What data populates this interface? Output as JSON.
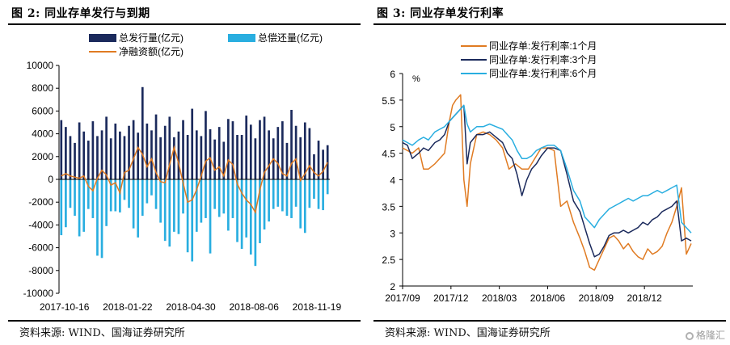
{
  "left": {
    "title": "图 2:  同业存单发行与到期",
    "source": "资料来源:  WIND、国海证券研究所",
    "chart_data": {
      "type": "bar",
      "ylim": [
        -10000,
        10000
      ],
      "yticks": [
        -10000,
        -8000,
        -6000,
        -4000,
        -2000,
        0,
        2000,
        4000,
        6000,
        8000,
        10000
      ],
      "xtick_labels": [
        "2017-10-16",
        "2018-01-22",
        "2018-04-30",
        "2018-08-06",
        "2018-11-19"
      ],
      "xtick_index": [
        0,
        14,
        28,
        42,
        56
      ],
      "legend": [
        "总发行量(亿元)",
        "总偿还量(亿元)",
        "净融资额(亿元)"
      ],
      "series": [
        {
          "name": "总发行量(亿元)",
          "color": "#1b2a5c",
          "values": [
            5200,
            4600,
            3800,
            3200,
            5000,
            4200,
            3400,
            5100,
            3800,
            4300,
            5500,
            3600,
            4900,
            4200,
            3800,
            4700,
            5200,
            4100,
            8100,
            4900,
            4300,
            5700,
            3700,
            4700,
            5500,
            3700,
            4200,
            5200,
            3900,
            6200,
            4300,
            3800,
            6000,
            4400,
            3500,
            4600,
            3300,
            5300,
            5100,
            3900,
            3900,
            5600,
            4800,
            3600,
            5200,
            5500,
            4300,
            3600,
            4600,
            5100,
            3200,
            6100,
            4700,
            3700,
            5000,
            4500,
            2200,
            3400,
            2600,
            3000
          ]
        },
        {
          "name": "总偿还量(亿元)",
          "color": "#29aee0",
          "values": [
            -4900,
            -4200,
            -2500,
            -3200,
            -5000,
            -4600,
            -2600,
            -3400,
            -6700,
            -6900,
            -4100,
            -2800,
            -2800,
            -2900,
            -1800,
            -2500,
            -4300,
            -5100,
            -3200,
            -2100,
            -1400,
            -2600,
            -3800,
            -5400,
            -5900,
            -4600,
            -4800,
            -3000,
            -6400,
            -7200,
            -4600,
            -3800,
            -3400,
            -6500,
            -2600,
            -3300,
            -3000,
            -4500,
            -3400,
            -5500,
            -6100,
            -5100,
            -6600,
            -7600,
            -5600,
            -4400,
            -3700,
            -2600,
            -2400,
            -2800,
            -3200,
            -3400,
            -2400,
            -4300,
            -4700,
            -2500,
            -1700,
            -2600,
            -2700,
            -1300
          ]
        },
        {
          "name": "净融资额(亿元)",
          "color": "#e07b22",
          "values": [
            300,
            500,
            300,
            200,
            100,
            300,
            -600,
            -1000,
            100,
            800,
            400,
            -500,
            -300,
            -1200,
            600,
            800,
            1800,
            2800,
            2200,
            1100,
            1800,
            600,
            -200,
            -300,
            1300,
            2800,
            1400,
            -300,
            -2000,
            -1800,
            -900,
            300,
            1600,
            1900,
            800,
            1100,
            300,
            1700,
            1300,
            -400,
            -1200,
            -1800,
            -2200,
            -2900,
            -900,
            600,
            1200,
            1800,
            1400,
            500,
            300,
            1400,
            1800,
            -100,
            500,
            1200,
            600,
            300,
            700,
            1500
          ]
        }
      ]
    }
  },
  "right": {
    "title": "图 3:  同业存单发行利率",
    "source": "资料来源:  WIND、国海证券研究所",
    "watermark": "格隆汇",
    "chart_data": {
      "type": "line",
      "ylabel": "%",
      "ylim": [
        2,
        6
      ],
      "yticks": [
        2,
        2.5,
        3,
        3.5,
        4,
        4.5,
        5,
        5.5,
        6
      ],
      "xlim": [
        0,
        18
      ],
      "xtick_labels": [
        "2017/09",
        "2017/12",
        "2018/03",
        "2018/06",
        "2018/09",
        "2018/12"
      ],
      "xtick_pos": [
        0,
        3,
        6,
        9,
        12,
        15
      ],
      "series": [
        {
          "name": "同业存单:发行利率:1个月",
          "color": "#e07b22",
          "x": [
            0,
            0.3,
            0.6,
            1.0,
            1.3,
            1.6,
            2.0,
            2.3,
            2.6,
            2.9,
            3.1,
            3.3,
            3.6,
            3.8,
            4.0,
            4.2,
            4.6,
            5.0,
            5.4,
            5.8,
            6.2,
            6.6,
            7.0,
            7.4,
            7.8,
            8.2,
            8.6,
            9.0,
            9.4,
            9.8,
            10.2,
            10.6,
            11.0,
            11.3,
            11.6,
            11.9,
            12.2,
            12.5,
            12.8,
            13.1,
            13.4,
            13.7,
            14.0,
            14.3,
            14.6,
            14.9,
            15.2,
            15.5,
            15.8,
            16.1,
            16.4,
            16.7,
            17.0,
            17.3,
            17.6,
            17.9
          ],
          "y": [
            4.6,
            4.55,
            4.5,
            4.6,
            4.2,
            4.2,
            4.3,
            4.4,
            4.5,
            5.1,
            5.4,
            5.5,
            5.6,
            4.0,
            3.5,
            4.3,
            4.85,
            4.9,
            4.85,
            4.75,
            4.6,
            4.2,
            4.3,
            4.2,
            4.2,
            4.4,
            4.6,
            4.6,
            4.55,
            3.5,
            3.6,
            3.2,
            2.9,
            2.65,
            2.35,
            2.3,
            2.5,
            2.7,
            2.9,
            2.95,
            2.85,
            2.7,
            2.8,
            2.65,
            2.55,
            2.5,
            2.7,
            2.6,
            2.65,
            2.75,
            3.0,
            3.2,
            3.5,
            3.85,
            2.6,
            2.8
          ]
        },
        {
          "name": "同业存单:发行利率:3个月",
          "color": "#1b2a5c",
          "x": [
            0,
            0.3,
            0.6,
            1.0,
            1.3,
            1.6,
            2.0,
            2.3,
            2.6,
            2.9,
            3.2,
            3.5,
            3.8,
            4.0,
            4.2,
            4.6,
            5.0,
            5.4,
            5.8,
            6.2,
            6.5,
            6.8,
            7.1,
            7.4,
            7.7,
            8.0,
            8.3,
            8.6,
            9.0,
            9.4,
            9.8,
            10.2,
            10.6,
            11.0,
            11.3,
            11.6,
            11.9,
            12.2,
            12.5,
            12.8,
            13.1,
            13.4,
            13.7,
            14.0,
            14.3,
            14.6,
            14.9,
            15.2,
            15.5,
            15.8,
            16.1,
            16.4,
            16.7,
            17.0,
            17.3,
            17.6,
            17.9
          ],
          "y": [
            4.7,
            4.65,
            4.4,
            4.5,
            4.6,
            4.55,
            4.7,
            4.75,
            4.85,
            5.1,
            5.2,
            5.3,
            5.4,
            4.3,
            4.7,
            4.85,
            4.85,
            4.9,
            4.8,
            4.7,
            4.5,
            4.4,
            4.1,
            3.7,
            4.0,
            4.2,
            4.3,
            4.45,
            4.6,
            4.6,
            4.55,
            4.1,
            3.6,
            3.4,
            3.1,
            2.8,
            2.55,
            2.6,
            2.75,
            2.95,
            3.0,
            3.0,
            3.05,
            3.0,
            3.05,
            3.1,
            3.2,
            3.15,
            3.25,
            3.3,
            3.4,
            3.45,
            3.5,
            3.6,
            2.85,
            2.9,
            2.85
          ]
        },
        {
          "name": "同业存单:发行利率:6个月",
          "color": "#29aee0",
          "x": [
            0,
            0.3,
            0.6,
            1.0,
            1.3,
            1.6,
            2.0,
            2.3,
            2.6,
            2.9,
            3.2,
            3.5,
            3.8,
            4.0,
            4.2,
            4.6,
            5.0,
            5.4,
            5.8,
            6.2,
            6.5,
            6.8,
            7.1,
            7.4,
            7.7,
            8.0,
            8.3,
            8.6,
            9.0,
            9.4,
            9.8,
            10.2,
            10.6,
            11.0,
            11.3,
            11.6,
            11.9,
            12.2,
            12.5,
            12.8,
            13.1,
            13.4,
            13.7,
            14.0,
            14.3,
            14.6,
            14.9,
            15.2,
            15.5,
            15.8,
            16.1,
            16.4,
            16.7,
            17.0,
            17.3,
            17.6,
            17.9
          ],
          "y": [
            4.75,
            4.7,
            4.65,
            4.75,
            4.8,
            4.75,
            4.9,
            4.95,
            5.0,
            5.1,
            5.2,
            5.3,
            5.4,
            5.05,
            4.9,
            5.0,
            5.0,
            5.05,
            5.0,
            4.95,
            4.85,
            4.75,
            4.55,
            4.4,
            4.4,
            4.45,
            4.55,
            4.6,
            4.65,
            4.65,
            4.55,
            4.2,
            3.8,
            3.6,
            3.3,
            3.2,
            3.1,
            3.25,
            3.35,
            3.45,
            3.5,
            3.55,
            3.6,
            3.65,
            3.6,
            3.65,
            3.7,
            3.7,
            3.75,
            3.8,
            3.75,
            3.8,
            3.85,
            3.9,
            3.2,
            3.1,
            3.0
          ]
        }
      ]
    }
  }
}
